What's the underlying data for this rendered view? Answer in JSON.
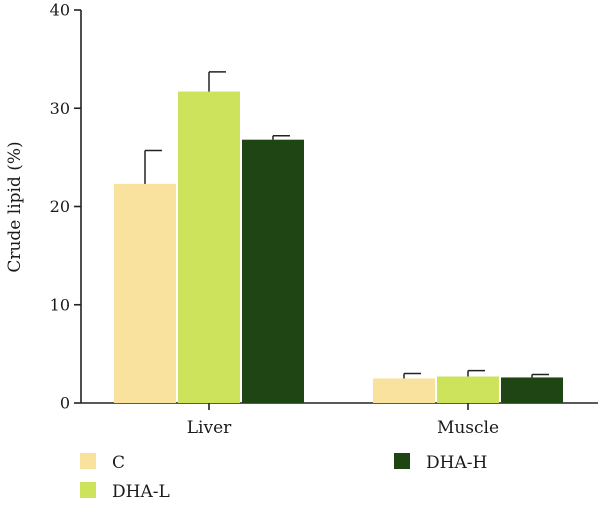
{
  "chart_data": {
    "type": "bar",
    "title": "",
    "xlabel": "",
    "ylabel": "Crude lipid (%)",
    "ylim": [
      0,
      40
    ],
    "yticks": [
      0,
      10,
      20,
      30,
      40
    ],
    "categories": [
      "Liver",
      "Muscle"
    ],
    "series": [
      {
        "name": "C",
        "color": "#f9e19e",
        "values": [
          22.3,
          2.5
        ],
        "errors": [
          3.4,
          0.5
        ]
      },
      {
        "name": "DHA-L",
        "color": "#cde35b",
        "values": [
          31.7,
          2.7
        ],
        "errors": [
          2.0,
          0.6
        ]
      },
      {
        "name": "DHA-H",
        "color": "#1e4513",
        "values": [
          26.8,
          2.6
        ],
        "errors": [
          0.4,
          0.3
        ]
      }
    ],
    "error_bars": "upper",
    "grid": false,
    "legend": "bottom"
  }
}
